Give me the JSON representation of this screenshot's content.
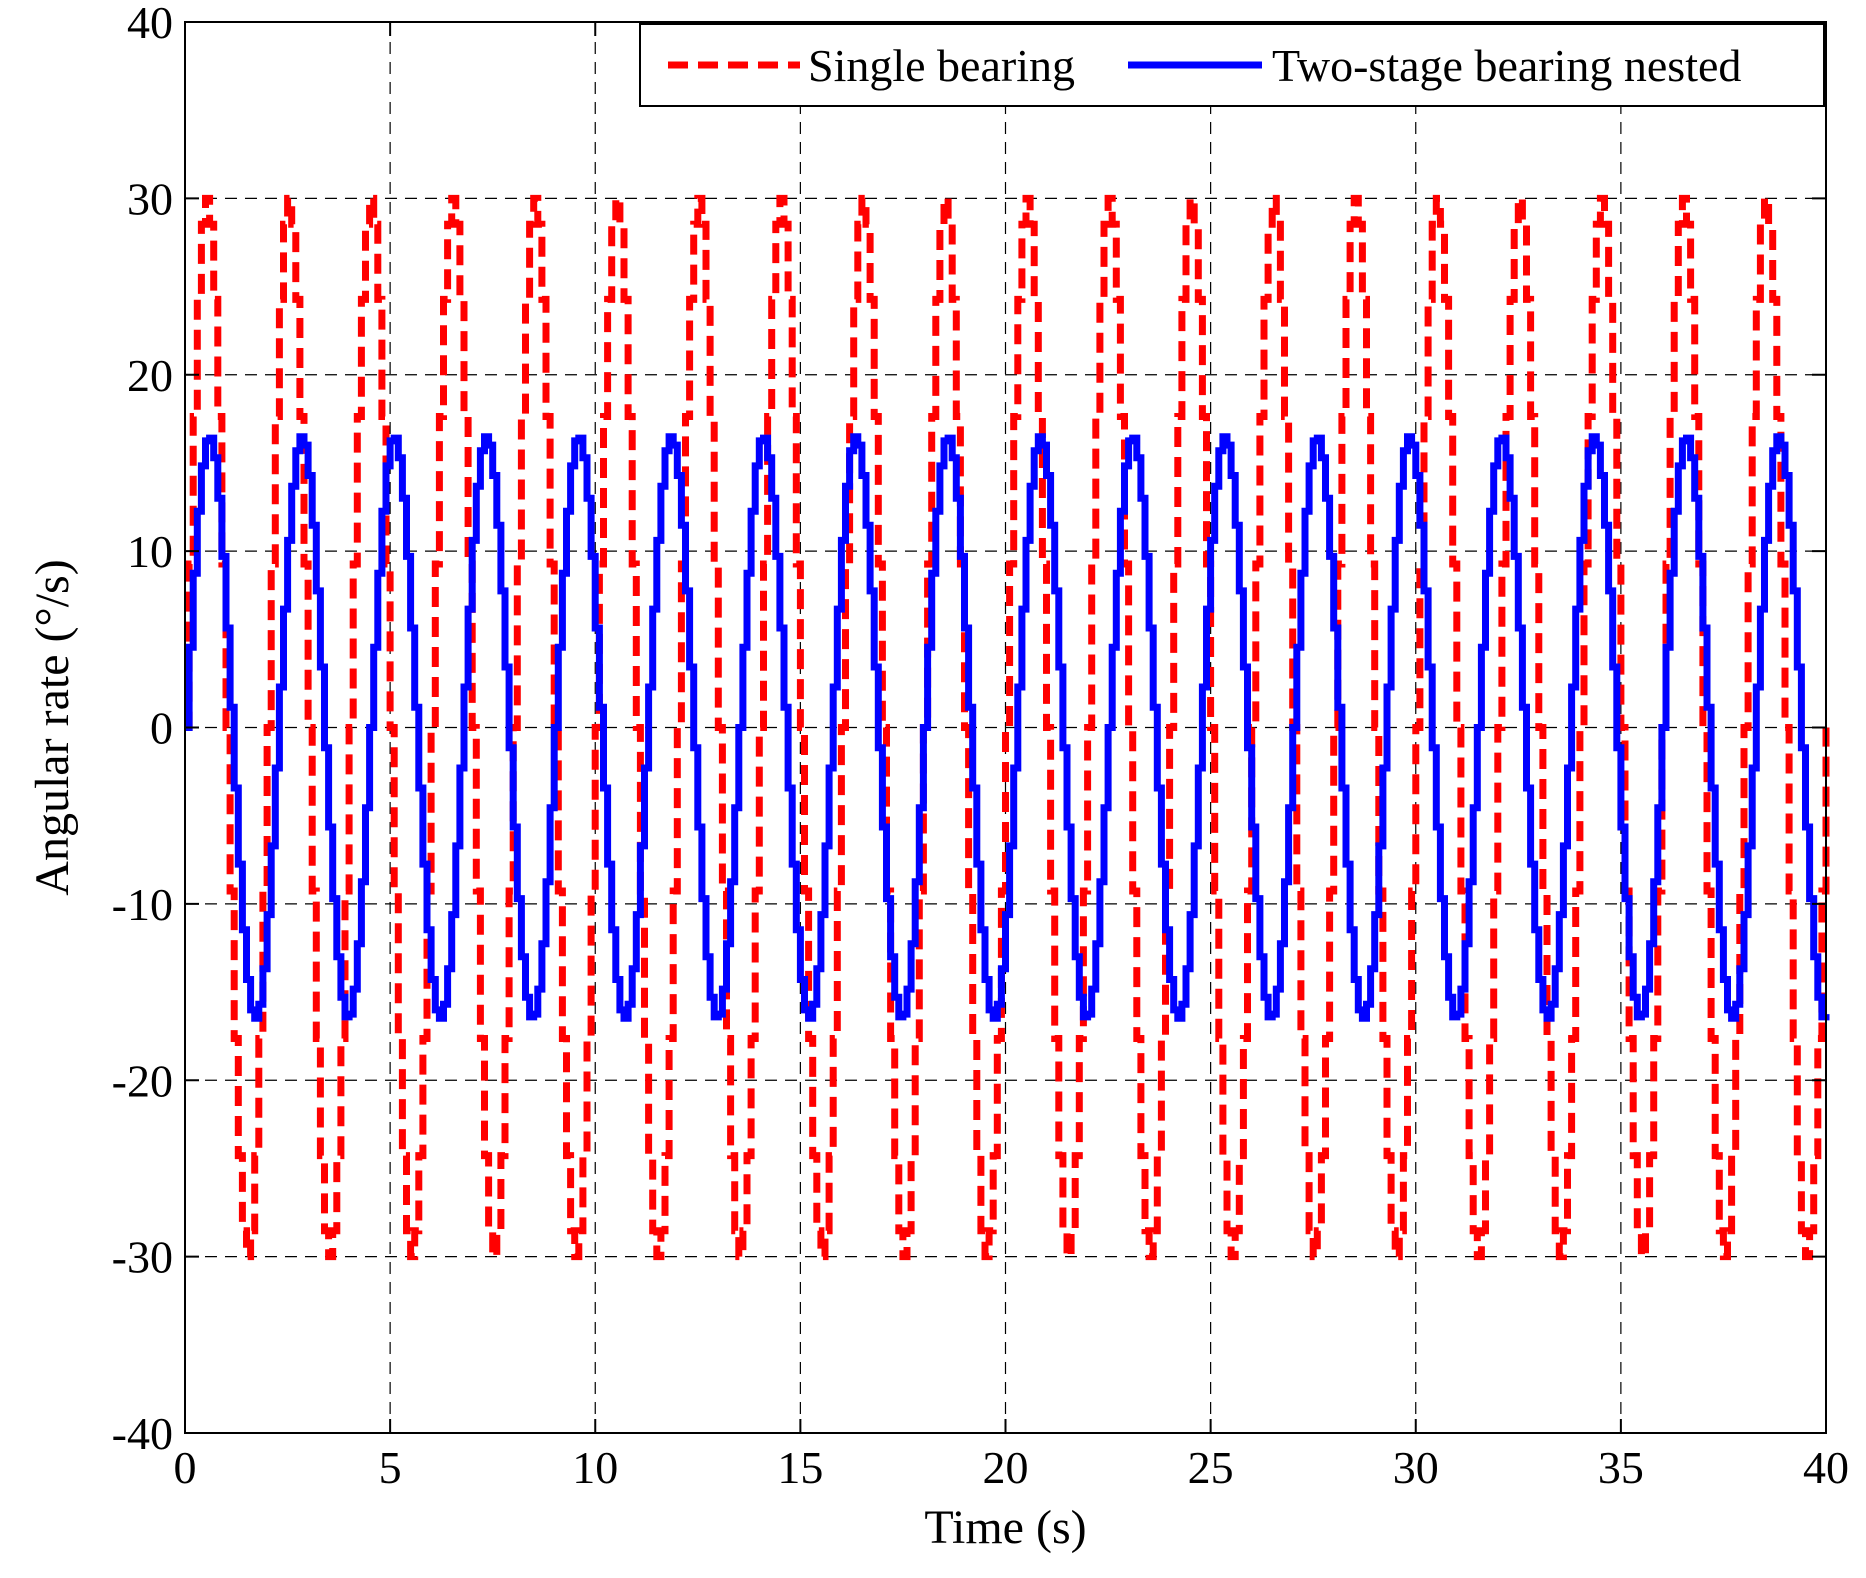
{
  "chart_data": {
    "type": "line",
    "title": "",
    "xlabel": "Time (s)",
    "ylabel": "Angular rate (°/s)",
    "xlim": [
      0,
      40
    ],
    "ylim": [
      -40,
      40
    ],
    "xticks": [
      0,
      5,
      10,
      15,
      20,
      25,
      30,
      35,
      40
    ],
    "yticks": [
      -40,
      -30,
      -20,
      -10,
      0,
      10,
      20,
      30,
      40
    ],
    "grid": true,
    "legend_location": "top-right",
    "series": [
      {
        "name": "Single bearing",
        "color": "#ff0000",
        "style": "dashed",
        "amplitude": 30,
        "period_s": 2.0,
        "phase_zero_at_s": 0,
        "x_range": [
          0,
          40
        ]
      },
      {
        "name": "Two-stage bearing nested",
        "color": "#0000ff",
        "style": "solid",
        "amplitude": 16.5,
        "period_s": 2.25,
        "phase_zero_at_s": 0,
        "x_range": [
          0,
          40
        ]
      }
    ]
  }
}
